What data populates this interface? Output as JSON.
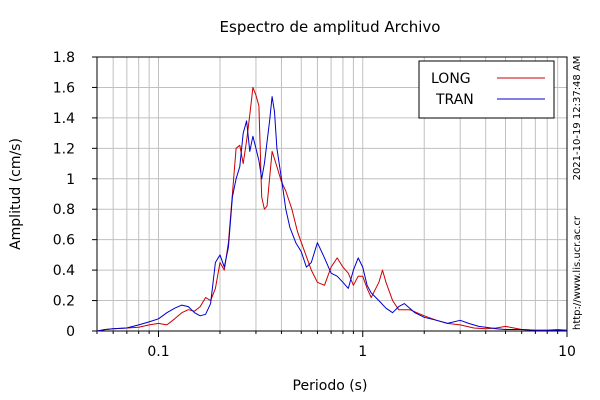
{
  "chart_data": {
    "type": "line",
    "title": "Espectro de amplitud Archivo",
    "xlabel": "Periodo (s)",
    "ylabel": "Amplitud (cm/s)",
    "x_scale": "log",
    "xlim": [
      0.05,
      10
    ],
    "ylim": [
      0,
      1.8
    ],
    "x_ticks": [
      {
        "value": 0.1,
        "label": "0.1"
      },
      {
        "value": 1,
        "label": "1"
      },
      {
        "value": 10,
        "label": "10"
      }
    ],
    "y_ticks": [
      {
        "value": 0,
        "label": "0"
      },
      {
        "value": 0.2,
        "label": "0.2"
      },
      {
        "value": 0.4,
        "label": "0.4"
      },
      {
        "value": 0.6,
        "label": "0.6"
      },
      {
        "value": 0.8,
        "label": "0.8"
      },
      {
        "value": 1.0,
        "label": "1"
      },
      {
        "value": 1.2,
        "label": "1.2"
      },
      {
        "value": 1.4,
        "label": "1.4"
      },
      {
        "value": 1.6,
        "label": "1.6"
      },
      {
        "value": 1.8,
        "label": "1.8"
      }
    ],
    "grid": true,
    "legend": "top-right",
    "series": [
      {
        "name": "LONG",
        "color": "#cc0000",
        "points": [
          [
            0.05,
            0.0
          ],
          [
            0.055,
            0.01
          ],
          [
            0.06,
            0.015
          ],
          [
            0.07,
            0.02
          ],
          [
            0.08,
            0.025
          ],
          [
            0.09,
            0.04
          ],
          [
            0.1,
            0.05
          ],
          [
            0.11,
            0.04
          ],
          [
            0.12,
            0.08
          ],
          [
            0.13,
            0.12
          ],
          [
            0.14,
            0.14
          ],
          [
            0.15,
            0.13
          ],
          [
            0.16,
            0.16
          ],
          [
            0.17,
            0.22
          ],
          [
            0.18,
            0.2
          ],
          [
            0.19,
            0.28
          ],
          [
            0.2,
            0.45
          ],
          [
            0.21,
            0.4
          ],
          [
            0.22,
            0.58
          ],
          [
            0.23,
            0.9
          ],
          [
            0.24,
            1.2
          ],
          [
            0.25,
            1.22
          ],
          [
            0.26,
            1.1
          ],
          [
            0.27,
            1.25
          ],
          [
            0.28,
            1.42
          ],
          [
            0.29,
            1.6
          ],
          [
            0.3,
            1.55
          ],
          [
            0.31,
            1.48
          ],
          [
            0.32,
            0.88
          ],
          [
            0.33,
            0.8
          ],
          [
            0.34,
            0.82
          ],
          [
            0.36,
            1.18
          ],
          [
            0.38,
            1.08
          ],
          [
            0.4,
            0.98
          ],
          [
            0.42,
            0.92
          ],
          [
            0.45,
            0.8
          ],
          [
            0.48,
            0.65
          ],
          [
            0.52,
            0.52
          ],
          [
            0.56,
            0.4
          ],
          [
            0.6,
            0.32
          ],
          [
            0.65,
            0.3
          ],
          [
            0.7,
            0.42
          ],
          [
            0.75,
            0.48
          ],
          [
            0.8,
            0.42
          ],
          [
            0.85,
            0.38
          ],
          [
            0.9,
            0.3
          ],
          [
            0.95,
            0.36
          ],
          [
            1.0,
            0.36
          ],
          [
            1.05,
            0.28
          ],
          [
            1.1,
            0.22
          ],
          [
            1.2,
            0.32
          ],
          [
            1.25,
            0.4
          ],
          [
            1.3,
            0.32
          ],
          [
            1.4,
            0.2
          ],
          [
            1.5,
            0.14
          ],
          [
            1.7,
            0.14
          ],
          [
            2.0,
            0.1
          ],
          [
            2.3,
            0.07
          ],
          [
            2.6,
            0.05
          ],
          [
            3.0,
            0.04
          ],
          [
            3.5,
            0.02
          ],
          [
            4.0,
            0.015
          ],
          [
            4.5,
            0.02
          ],
          [
            5.0,
            0.03
          ],
          [
            5.5,
            0.02
          ],
          [
            6.0,
            0.01
          ],
          [
            7.0,
            0.005
          ],
          [
            8.0,
            0.005
          ],
          [
            9.0,
            0.01
          ],
          [
            10.0,
            0.005
          ]
        ]
      },
      {
        "name": "TRAN",
        "color": "#0000cc",
        "points": [
          [
            0.05,
            0.0
          ],
          [
            0.055,
            0.01
          ],
          [
            0.06,
            0.015
          ],
          [
            0.07,
            0.02
          ],
          [
            0.08,
            0.04
          ],
          [
            0.09,
            0.06
          ],
          [
            0.1,
            0.08
          ],
          [
            0.11,
            0.12
          ],
          [
            0.12,
            0.15
          ],
          [
            0.13,
            0.17
          ],
          [
            0.14,
            0.16
          ],
          [
            0.15,
            0.12
          ],
          [
            0.16,
            0.1
          ],
          [
            0.17,
            0.11
          ],
          [
            0.18,
            0.18
          ],
          [
            0.19,
            0.45
          ],
          [
            0.2,
            0.5
          ],
          [
            0.21,
            0.42
          ],
          [
            0.22,
            0.55
          ],
          [
            0.23,
            0.88
          ],
          [
            0.24,
            1.0
          ],
          [
            0.25,
            1.08
          ],
          [
            0.26,
            1.3
          ],
          [
            0.27,
            1.38
          ],
          [
            0.28,
            1.18
          ],
          [
            0.29,
            1.28
          ],
          [
            0.3,
            1.2
          ],
          [
            0.31,
            1.12
          ],
          [
            0.32,
            1.0
          ],
          [
            0.33,
            1.1
          ],
          [
            0.34,
            1.24
          ],
          [
            0.35,
            1.38
          ],
          [
            0.36,
            1.54
          ],
          [
            0.37,
            1.44
          ],
          [
            0.38,
            1.2
          ],
          [
            0.4,
            1.0
          ],
          [
            0.42,
            0.8
          ],
          [
            0.44,
            0.68
          ],
          [
            0.47,
            0.58
          ],
          [
            0.5,
            0.52
          ],
          [
            0.53,
            0.42
          ],
          [
            0.56,
            0.45
          ],
          [
            0.6,
            0.58
          ],
          [
            0.65,
            0.48
          ],
          [
            0.7,
            0.38
          ],
          [
            0.75,
            0.36
          ],
          [
            0.8,
            0.32
          ],
          [
            0.85,
            0.28
          ],
          [
            0.9,
            0.4
          ],
          [
            0.95,
            0.48
          ],
          [
            1.0,
            0.42
          ],
          [
            1.05,
            0.3
          ],
          [
            1.1,
            0.25
          ],
          [
            1.2,
            0.2
          ],
          [
            1.3,
            0.15
          ],
          [
            1.4,
            0.12
          ],
          [
            1.5,
            0.16
          ],
          [
            1.6,
            0.18
          ],
          [
            1.8,
            0.12
          ],
          [
            2.0,
            0.09
          ],
          [
            2.3,
            0.07
          ],
          [
            2.6,
            0.05
          ],
          [
            3.0,
            0.07
          ],
          [
            3.3,
            0.05
          ],
          [
            3.7,
            0.03
          ],
          [
            4.0,
            0.025
          ],
          [
            4.5,
            0.015
          ],
          [
            5.0,
            0.01
          ],
          [
            6.0,
            0.01
          ],
          [
            7.0,
            0.005
          ],
          [
            8.0,
            0.005
          ],
          [
            9.0,
            0.005
          ],
          [
            10.0,
            0.005
          ]
        ]
      }
    ]
  },
  "side_text": {
    "timestamp": "2021-10-19 12:37:48 AM",
    "url": "http://www.lis.ucr.ac.cr"
  }
}
